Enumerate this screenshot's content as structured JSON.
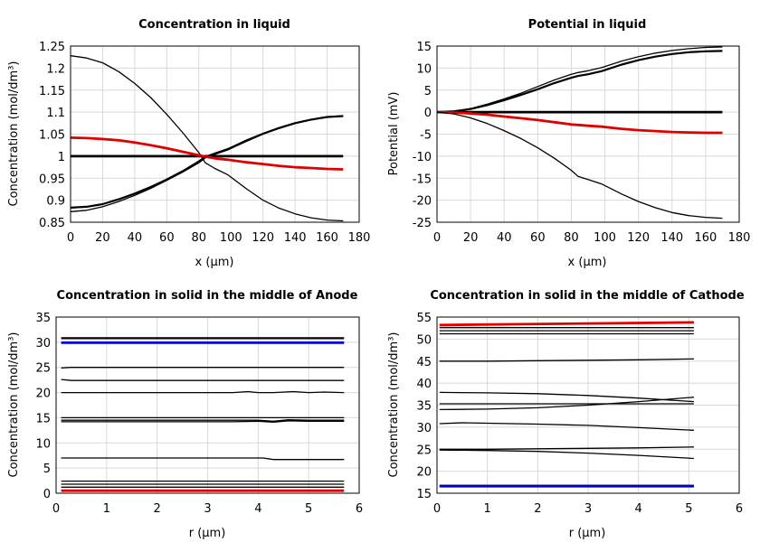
{
  "chart_data": [
    {
      "type": "line",
      "title": "Concentration in liquid",
      "xlabel": "x (µm)",
      "ylabel": "Concentration (mol/dm³)",
      "xlim": [
        0,
        180
      ],
      "ylim": [
        0.85,
        1.25
      ],
      "xticks": [
        "0",
        "20",
        "40",
        "60",
        "80",
        "100",
        "120",
        "140",
        "160",
        "180"
      ],
      "yticks": [
        "0.85",
        "0.9",
        "0.95",
        "1",
        "1.05",
        "1.1",
        "1.15",
        "1.2",
        "1.25"
      ],
      "grid": true,
      "series": [
        {
          "name": "c1",
          "color": "#000000",
          "width": 1.3,
          "x": [
            0,
            10,
            20,
            30,
            40,
            50,
            60,
            70,
            80,
            84,
            90,
            98,
            110,
            120,
            130,
            140,
            150,
            160,
            170
          ],
          "y": [
            1.228,
            1.223,
            1.212,
            1.192,
            1.165,
            1.133,
            1.095,
            1.053,
            1.008,
            0.985,
            0.972,
            0.958,
            0.925,
            0.9,
            0.882,
            0.869,
            0.86,
            0.855,
            0.853
          ]
        },
        {
          "name": "c2",
          "color": "#000000",
          "width": 2.2,
          "x": [
            0,
            10,
            20,
            30,
            40,
            50,
            60,
            70,
            80,
            84,
            90,
            98,
            110,
            120,
            130,
            140,
            150,
            160,
            170
          ],
          "y": [
            0.883,
            0.885,
            0.891,
            0.902,
            0.915,
            0.93,
            0.947,
            0.966,
            0.988,
            0.998,
            1.006,
            1.016,
            1.036,
            1.051,
            1.064,
            1.075,
            1.083,
            1.089,
            1.091
          ]
        },
        {
          "name": "c3",
          "color": "#000000",
          "width": 1.3,
          "x": [
            0,
            10,
            20,
            30,
            40,
            50,
            60,
            70,
            80,
            84,
            90,
            98,
            110,
            120,
            130,
            140,
            150,
            160,
            170
          ],
          "y": [
            0.874,
            0.877,
            0.885,
            0.897,
            0.911,
            0.927,
            0.945,
            0.964,
            0.985,
            0.996,
            1.004,
            1.014,
            1.034,
            1.05,
            1.063,
            1.074,
            1.083,
            1.089,
            1.092
          ]
        },
        {
          "name": "c4",
          "color": "#000000",
          "width": 2.8,
          "x": [
            0,
            170
          ],
          "y": [
            1.0,
            1.0
          ]
        },
        {
          "name": "c5",
          "color": "#e00000",
          "width": 2.8,
          "x": [
            0,
            10,
            20,
            30,
            40,
            50,
            60,
            70,
            80,
            84,
            90,
            98,
            110,
            120,
            130,
            140,
            150,
            160,
            170
          ],
          "y": [
            1.042,
            1.041,
            1.039,
            1.036,
            1.031,
            1.025,
            1.018,
            1.01,
            1.002,
            0.999,
            0.995,
            0.992,
            0.986,
            0.982,
            0.978,
            0.975,
            0.973,
            0.971,
            0.97
          ]
        }
      ]
    },
    {
      "type": "line",
      "title": "Potential in liquid",
      "xlabel": "x (µm)",
      "ylabel": "Potential (mV)",
      "xlim": [
        0,
        180
      ],
      "ylim": [
        -25,
        15
      ],
      "xticks": [
        "0",
        "20",
        "40",
        "60",
        "80",
        "100",
        "120",
        "140",
        "160",
        "180"
      ],
      "yticks": [
        "-25",
        "-20",
        "-15",
        "-10",
        "-5",
        "0",
        "5",
        "10",
        "15"
      ],
      "grid": true,
      "series": [
        {
          "name": "p1",
          "color": "#000000",
          "width": 1.3,
          "x": [
            0,
            10,
            20,
            30,
            40,
            50,
            60,
            70,
            80,
            84,
            90,
            98,
            110,
            120,
            130,
            140,
            150,
            160,
            170
          ],
          "y": [
            0,
            0.2,
            0.8,
            1.8,
            3.0,
            4.3,
            5.8,
            7.3,
            8.6,
            9.0,
            9.4,
            10.1,
            11.6,
            12.6,
            13.4,
            14.0,
            14.4,
            14.7,
            14.8
          ]
        },
        {
          "name": "p2",
          "color": "#000000",
          "width": 2.2,
          "x": [
            0,
            10,
            20,
            30,
            40,
            50,
            60,
            70,
            80,
            84,
            90,
            98,
            110,
            120,
            130,
            140,
            150,
            160,
            170
          ],
          "y": [
            0,
            0.2,
            0.7,
            1.6,
            2.7,
            3.9,
            5.2,
            6.6,
            7.8,
            8.2,
            8.6,
            9.3,
            10.8,
            11.8,
            12.6,
            13.2,
            13.6,
            13.8,
            13.9
          ]
        },
        {
          "name": "p3",
          "color": "#000000",
          "width": 2.8,
          "x": [
            0,
            170
          ],
          "y": [
            0,
            0
          ]
        },
        {
          "name": "p4",
          "color": "#e00000",
          "width": 2.8,
          "x": [
            0,
            10,
            20,
            30,
            40,
            50,
            60,
            70,
            80,
            84,
            90,
            98,
            110,
            120,
            130,
            140,
            150,
            160,
            170
          ],
          "y": [
            0,
            -0.1,
            -0.3,
            -0.6,
            -1.0,
            -1.4,
            -1.8,
            -2.3,
            -2.8,
            -2.9,
            -3.1,
            -3.3,
            -3.8,
            -4.1,
            -4.3,
            -4.5,
            -4.6,
            -4.7,
            -4.7
          ]
        },
        {
          "name": "p5",
          "color": "#000000",
          "width": 1.3,
          "x": [
            0,
            10,
            20,
            30,
            40,
            50,
            60,
            70,
            80,
            84,
            90,
            98,
            110,
            120,
            130,
            140,
            150,
            160,
            170
          ],
          "y": [
            0,
            -0.4,
            -1.3,
            -2.6,
            -4.2,
            -6.0,
            -8.1,
            -10.5,
            -13.2,
            -14.6,
            -15.3,
            -16.3,
            -18.6,
            -20.3,
            -21.7,
            -22.8,
            -23.5,
            -23.9,
            -24.1
          ]
        }
      ]
    },
    {
      "type": "line",
      "title": "Concentration in solid in the middle of Anode",
      "xlabel": "r (µm)",
      "ylabel": "Concentration (mol/dm³)",
      "xlim": [
        0,
        6
      ],
      "ylim": [
        0,
        35
      ],
      "xticks": [
        "0",
        "1",
        "2",
        "3",
        "4",
        "5",
        "6"
      ],
      "yticks": [
        "0",
        "5",
        "10",
        "15",
        "20",
        "25",
        "30",
        "35"
      ],
      "grid": true,
      "series": [
        {
          "name": "a1",
          "color": "#000000",
          "width": 2.2,
          "x": [
            0.1,
            5.7
          ],
          "y": [
            30.8,
            30.8
          ]
        },
        {
          "name": "a2",
          "color": "#0000cc",
          "width": 2.8,
          "x": [
            0.1,
            5.7
          ],
          "y": [
            29.9,
            29.9
          ]
        },
        {
          "name": "a3",
          "color": "#000000",
          "width": 1.3,
          "x": [
            0.1,
            0.3,
            5.7
          ],
          "y": [
            24.9,
            25.0,
            25.0
          ]
        },
        {
          "name": "a4",
          "color": "#000000",
          "width": 1.3,
          "x": [
            0.1,
            0.3,
            5.7
          ],
          "y": [
            22.6,
            22.4,
            22.4
          ]
        },
        {
          "name": "a5",
          "color": "#000000",
          "width": 1.3,
          "x": [
            0.1,
            1,
            2,
            3,
            3.5,
            3.8,
            4.0,
            4.3,
            4.7,
            5.0,
            5.3,
            5.7
          ],
          "y": [
            20.0,
            20.0,
            20.0,
            20.0,
            20.0,
            20.2,
            20.0,
            20.0,
            20.2,
            20.0,
            20.1,
            20.0
          ]
        },
        {
          "name": "a6",
          "color": "#000000",
          "width": 1.3,
          "x": [
            0.1,
            5.7
          ],
          "y": [
            15.0,
            15.0
          ]
        },
        {
          "name": "a7",
          "color": "#000000",
          "width": 1.3,
          "x": [
            0.1,
            3.5,
            4.0,
            4.3,
            4.6,
            5.0,
            5.7
          ],
          "y": [
            14.5,
            14.5,
            14.5,
            14.3,
            14.6,
            14.5,
            14.5
          ]
        },
        {
          "name": "a8",
          "color": "#000000",
          "width": 1.3,
          "x": [
            0.1,
            3.5,
            4.0,
            4.3,
            4.6,
            5.0,
            5.7
          ],
          "y": [
            14.2,
            14.2,
            14.3,
            14.1,
            14.4,
            14.3,
            14.3
          ]
        },
        {
          "name": "a9",
          "color": "#000000",
          "width": 1.3,
          "x": [
            0.1,
            4.1,
            4.3,
            5.7
          ],
          "y": [
            7.0,
            7.0,
            6.7,
            6.7
          ]
        },
        {
          "name": "a10",
          "color": "#000000",
          "width": 1.3,
          "x": [
            0.1,
            5.7
          ],
          "y": [
            2.4,
            2.4
          ]
        },
        {
          "name": "a11",
          "color": "#000000",
          "width": 1.3,
          "x": [
            0.1,
            5.7
          ],
          "y": [
            1.8,
            1.8
          ]
        },
        {
          "name": "a12",
          "color": "#000000",
          "width": 1.3,
          "x": [
            0.1,
            5.7
          ],
          "y": [
            1.2,
            1.2
          ]
        },
        {
          "name": "a13",
          "color": "#e00000",
          "width": 2.8,
          "x": [
            0.1,
            5.7
          ],
          "y": [
            0.5,
            0.5
          ]
        }
      ]
    },
    {
      "type": "line",
      "title": "Concentration in solid in the middle of Cathode",
      "xlabel": "r (µm)",
      "ylabel": "Concentration (mol/dm³)",
      "xlim": [
        0,
        6
      ],
      "ylim": [
        15,
        55
      ],
      "xticks": [
        "0",
        "1",
        "2",
        "3",
        "4",
        "5",
        "6"
      ],
      "yticks": [
        "15",
        "20",
        "25",
        "30",
        "35",
        "40",
        "45",
        "50",
        "55"
      ],
      "grid": true,
      "series": [
        {
          "name": "k1",
          "color": "#e00000",
          "width": 2.8,
          "x": [
            0.05,
            5.1
          ],
          "y": [
            53.2,
            53.8
          ]
        },
        {
          "name": "k2",
          "color": "#000000",
          "width": 1.3,
          "x": [
            0.05,
            5.1
          ],
          "y": [
            52.6,
            52.6
          ]
        },
        {
          "name": "k3",
          "color": "#000000",
          "width": 1.3,
          "x": [
            0.05,
            5.1
          ],
          "y": [
            51.9,
            51.9
          ]
        },
        {
          "name": "k4",
          "color": "#000000",
          "width": 1.3,
          "x": [
            0.05,
            5.1
          ],
          "y": [
            51.2,
            51.2
          ]
        },
        {
          "name": "k5",
          "color": "#000000",
          "width": 1.3,
          "x": [
            0.05,
            0.5,
            1,
            2,
            3,
            4,
            5.1
          ],
          "y": [
            45.0,
            45.0,
            45.0,
            45.1,
            45.2,
            45.3,
            45.5
          ]
        },
        {
          "name": "k6",
          "color": "#000000",
          "width": 1.3,
          "x": [
            0.05,
            1,
            2,
            3,
            4,
            5.1
          ],
          "y": [
            37.9,
            37.8,
            37.6,
            37.2,
            36.6,
            35.8
          ]
        },
        {
          "name": "k7",
          "color": "#000000",
          "width": 1.3,
          "x": [
            0.05,
            5.1
          ],
          "y": [
            35.3,
            35.3
          ]
        },
        {
          "name": "k8",
          "color": "#000000",
          "width": 1.3,
          "x": [
            0.05,
            1,
            2,
            3,
            4,
            5.1
          ],
          "y": [
            34.0,
            34.1,
            34.4,
            35.0,
            35.8,
            36.8
          ]
        },
        {
          "name": "k9",
          "color": "#000000",
          "width": 1.3,
          "x": [
            0.05,
            0.5,
            1,
            2,
            3,
            4,
            5.1
          ],
          "y": [
            30.8,
            31.0,
            30.9,
            30.7,
            30.4,
            29.9,
            29.3
          ]
        },
        {
          "name": "k10",
          "color": "#000000",
          "width": 1.3,
          "x": [
            0.05,
            1,
            2,
            3,
            4,
            5.1
          ],
          "y": [
            25.0,
            25.0,
            25.1,
            25.2,
            25.3,
            25.5
          ]
        },
        {
          "name": "k11",
          "color": "#000000",
          "width": 1.3,
          "x": [
            0.05,
            1,
            2,
            3,
            4,
            5.1
          ],
          "y": [
            24.8,
            24.7,
            24.5,
            24.1,
            23.6,
            22.9
          ]
        },
        {
          "name": "k12",
          "color": "#000000",
          "width": 2.2,
          "x": [
            0.05,
            5.1
          ],
          "y": [
            16.7,
            16.7
          ]
        },
        {
          "name": "k13",
          "color": "#0000cc",
          "width": 2.8,
          "x": [
            0.05,
            5.1
          ],
          "y": [
            16.6,
            16.6
          ]
        }
      ]
    }
  ]
}
